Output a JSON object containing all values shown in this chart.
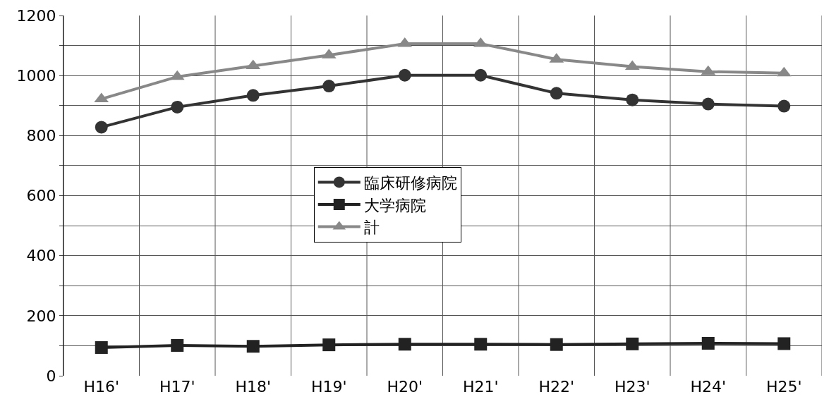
{
  "chart_data": {
    "type": "line",
    "categories": [
      "H16'",
      "H17'",
      "H18'",
      "H19'",
      "H20'",
      "H21'",
      "H22'",
      "H23'",
      "H24'",
      "H25'"
    ],
    "series": [
      {
        "name": "臨床研修病院",
        "color": "#333333",
        "marker": "circle",
        "values": [
          828,
          895,
          934,
          965,
          1001,
          1001,
          941,
          919,
          905,
          898
        ]
      },
      {
        "name": "大学病院",
        "color": "#222222",
        "marker": "square",
        "values": [
          94,
          101,
          98,
          103,
          105,
          105,
          104,
          106,
          108,
          107
        ]
      },
      {
        "name": "計",
        "color": "#888888",
        "marker": "triangle",
        "values": [
          922,
          996,
          1032,
          1068,
          1106,
          1106,
          1054,
          1030,
          1013,
          1008
        ]
      }
    ],
    "ylim": [
      0,
      1200
    ],
    "yticks": [
      0,
      {
        "value": 100,
        "label": null
      },
      200,
      {
        "value": 300,
        "label": null
      },
      400,
      {
        "value": 500,
        "label": null
      },
      600,
      {
        "value": 700,
        "label": null
      },
      800,
      {
        "value": 900,
        "label": null
      },
      1000,
      {
        "value": 1100,
        "label": null
      },
      1200
    ],
    "grid": true,
    "legend": "center",
    "line_style": "solid"
  }
}
